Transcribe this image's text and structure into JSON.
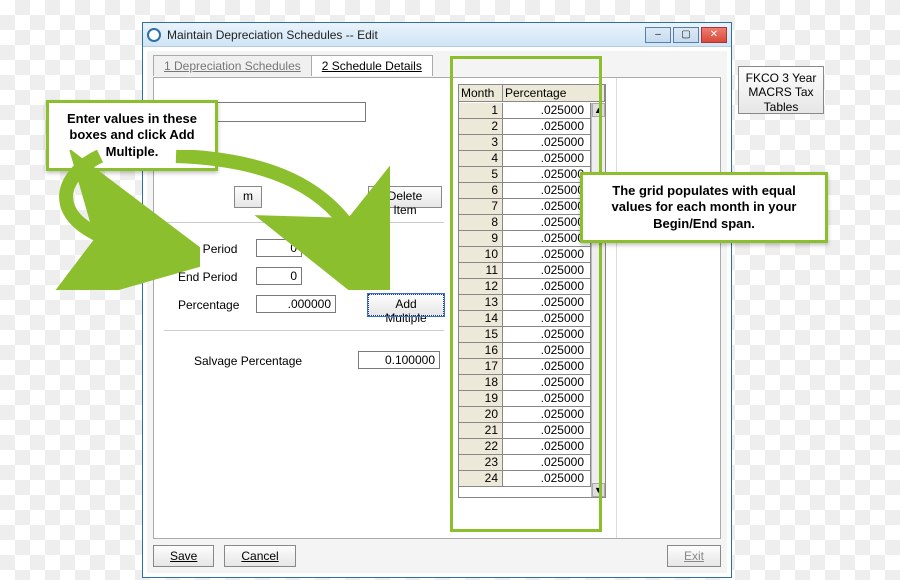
{
  "window": {
    "title": "Maintain Depreciation Schedules -- Edit"
  },
  "tabs": {
    "inactive": "1 Depreciation Schedules",
    "active": "2 Schedule Details"
  },
  "buttons": {
    "delete_item": "Delete Item",
    "add_multiple": "Add Multiple",
    "save": "Save",
    "cancel": "Cancel",
    "exit": "Exit",
    "item_partial": "m"
  },
  "labels": {
    "beg_period": "Beg Period",
    "end_period": "End Period",
    "percentage": "Percentage",
    "salvage_pct": "Salvage Percentage"
  },
  "fields": {
    "beg_period": "0",
    "end_period": "0",
    "percentage": ".000000",
    "salvage_pct": "0.100000"
  },
  "grid": {
    "header_month": "Month",
    "header_pct": "Percentage",
    "rows": [
      {
        "m": "1",
        "p": ".025000"
      },
      {
        "m": "2",
        "p": ".025000"
      },
      {
        "m": "3",
        "p": ".025000"
      },
      {
        "m": "4",
        "p": ".025000"
      },
      {
        "m": "5",
        "p": ".025000"
      },
      {
        "m": "6",
        "p": ".025000"
      },
      {
        "m": "7",
        "p": ".025000"
      },
      {
        "m": "8",
        "p": ".025000"
      },
      {
        "m": "9",
        "p": ".025000"
      },
      {
        "m": "10",
        "p": ".025000"
      },
      {
        "m": "11",
        "p": ".025000"
      },
      {
        "m": "12",
        "p": ".025000"
      },
      {
        "m": "13",
        "p": ".025000"
      },
      {
        "m": "14",
        "p": ".025000"
      },
      {
        "m": "15",
        "p": ".025000"
      },
      {
        "m": "16",
        "p": ".025000"
      },
      {
        "m": "17",
        "p": ".025000"
      },
      {
        "m": "18",
        "p": ".025000"
      },
      {
        "m": "19",
        "p": ".025000"
      },
      {
        "m": "20",
        "p": ".025000"
      },
      {
        "m": "21",
        "p": ".025000"
      },
      {
        "m": "22",
        "p": ".025000"
      },
      {
        "m": "23",
        "p": ".025000"
      },
      {
        "m": "24",
        "p": ".025000"
      }
    ]
  },
  "side_button": "FKCO 3 Year MACRS Tax Tables",
  "callouts": {
    "left": "Enter values in these boxes and click Add Multiple.",
    "right": "The grid populates with equal values for each month in your Begin/End span."
  },
  "colors": {
    "accent_green": "#8bbf2d",
    "window_border": "#2f6fa8"
  }
}
